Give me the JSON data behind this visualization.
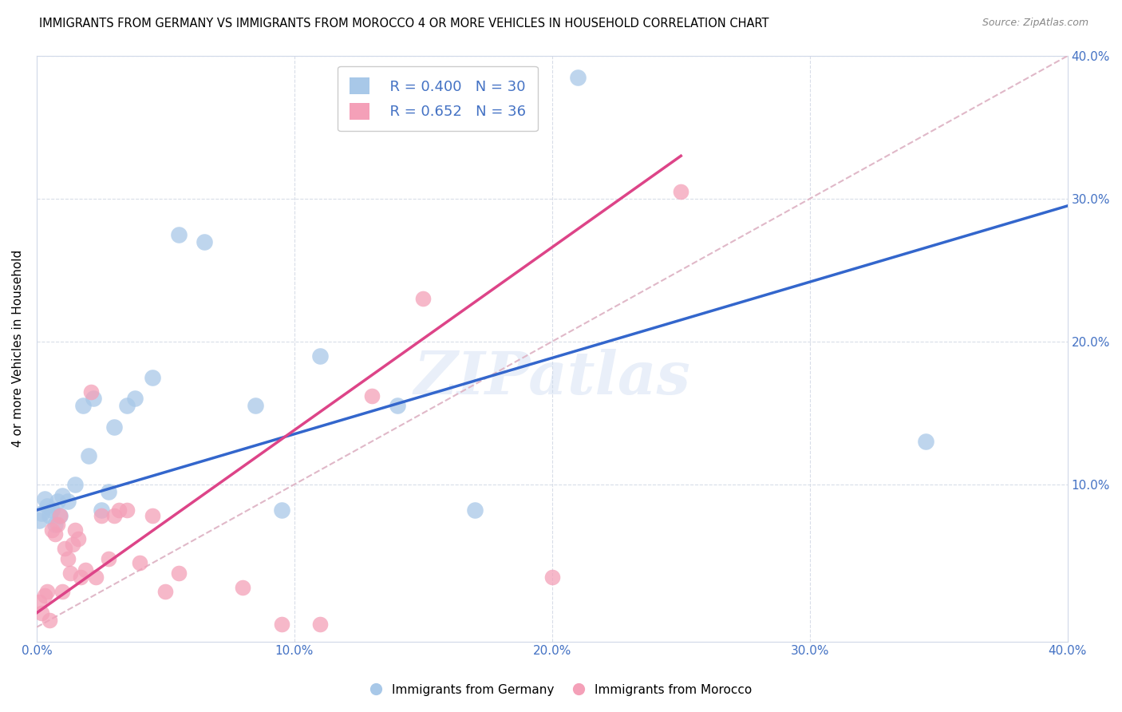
{
  "title": "IMMIGRANTS FROM GERMANY VS IMMIGRANTS FROM MOROCCO 4 OR MORE VEHICLES IN HOUSEHOLD CORRELATION CHART",
  "source": "Source: ZipAtlas.com",
  "tick_color": "#4472c4",
  "ylabel": "4 or more Vehicles in Household",
  "xlim": [
    0.0,
    0.4
  ],
  "ylim": [
    -0.01,
    0.4
  ],
  "xticks": [
    0.0,
    0.1,
    0.2,
    0.3,
    0.4
  ],
  "yticks": [
    0.0,
    0.1,
    0.2,
    0.3,
    0.4
  ],
  "xtick_labels": [
    "0.0%",
    "10.0%",
    "20.0%",
    "30.0%",
    "40.0%"
  ],
  "ytick_labels": [
    "",
    "10.0%",
    "20.0%",
    "30.0%",
    "40.0%"
  ],
  "germany_color": "#a8c8e8",
  "morocco_color": "#f4a0b8",
  "germany_line_color": "#3366cc",
  "morocco_line_color": "#dd4488",
  "diagonal_color": "#e0b8c8",
  "legend_R_germany": "R = 0.400",
  "legend_N_germany": "N = 30",
  "legend_R_morocco": "R = 0.652",
  "legend_N_morocco": "N = 36",
  "watermark": "ZIPatlas",
  "germany_x": [
    0.001,
    0.002,
    0.003,
    0.004,
    0.005,
    0.006,
    0.007,
    0.008,
    0.009,
    0.01,
    0.012,
    0.015,
    0.018,
    0.02,
    0.022,
    0.025,
    0.028,
    0.03,
    0.035,
    0.038,
    0.045,
    0.055,
    0.065,
    0.085,
    0.095,
    0.11,
    0.14,
    0.17,
    0.21,
    0.345
  ],
  "germany_y": [
    0.075,
    0.08,
    0.09,
    0.085,
    0.078,
    0.082,
    0.072,
    0.088,
    0.078,
    0.092,
    0.088,
    0.1,
    0.155,
    0.12,
    0.16,
    0.082,
    0.095,
    0.14,
    0.155,
    0.16,
    0.175,
    0.275,
    0.27,
    0.155,
    0.082,
    0.19,
    0.155,
    0.082,
    0.385,
    0.13
  ],
  "morocco_x": [
    0.001,
    0.002,
    0.003,
    0.004,
    0.005,
    0.006,
    0.007,
    0.008,
    0.009,
    0.01,
    0.011,
    0.012,
    0.013,
    0.014,
    0.015,
    0.016,
    0.017,
    0.019,
    0.021,
    0.023,
    0.025,
    0.028,
    0.03,
    0.032,
    0.035,
    0.04,
    0.045,
    0.05,
    0.055,
    0.08,
    0.095,
    0.11,
    0.13,
    0.15,
    0.2,
    0.25
  ],
  "morocco_y": [
    0.018,
    0.01,
    0.022,
    0.025,
    0.005,
    0.068,
    0.065,
    0.072,
    0.078,
    0.025,
    0.055,
    0.048,
    0.038,
    0.058,
    0.068,
    0.062,
    0.035,
    0.04,
    0.165,
    0.035,
    0.078,
    0.048,
    0.078,
    0.082,
    0.082,
    0.045,
    0.078,
    0.025,
    0.038,
    0.028,
    0.002,
    0.002,
    0.162,
    0.23,
    0.035,
    0.305
  ],
  "germany_line_x0": 0.0,
  "germany_line_y0": 0.082,
  "germany_line_x1": 0.4,
  "germany_line_y1": 0.295,
  "morocco_line_x0": 0.0,
  "morocco_line_y0": 0.01,
  "morocco_line_x1": 0.25,
  "morocco_line_y1": 0.33
}
